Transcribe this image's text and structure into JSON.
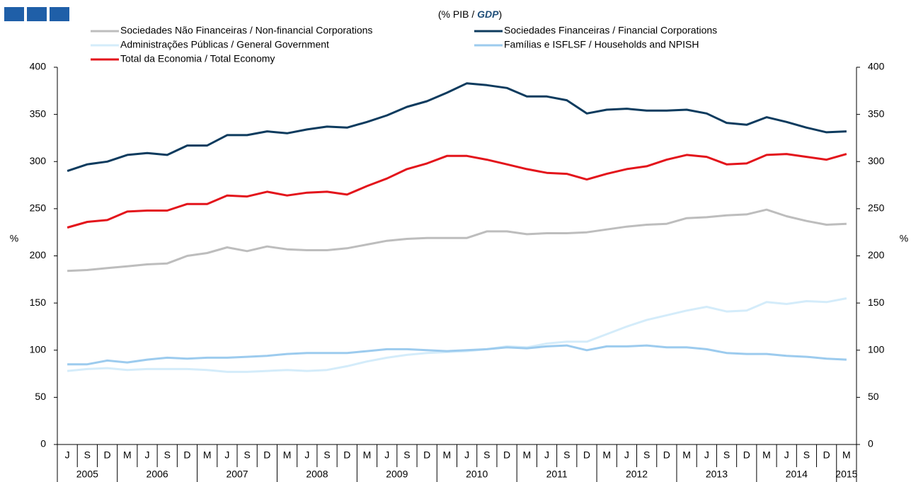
{
  "chart_data": {
    "type": "line",
    "subtitle": [
      "(% PIB / ",
      "GDP",
      ")"
    ],
    "y_label": "%",
    "y2_label": "%",
    "categories": [
      "J",
      "S",
      "D",
      "M",
      "J",
      "S",
      "D",
      "M",
      "J",
      "S",
      "D",
      "M",
      "J",
      "S",
      "D",
      "M",
      "J",
      "S",
      "D",
      "M",
      "J",
      "S",
      "D",
      "M",
      "J",
      "S",
      "D",
      "M",
      "J",
      "S",
      "D",
      "M",
      "J",
      "S",
      "D",
      "M",
      "J",
      "S",
      "D",
      "M"
    ],
    "category_years": [
      "2005",
      "2005",
      "2005",
      "2006",
      "2006",
      "2006",
      "2006",
      "2007",
      "2007",
      "2007",
      "2007",
      "2008",
      "2008",
      "2008",
      "2008",
      "2009",
      "2009",
      "2009",
      "2009",
      "2010",
      "2010",
      "2010",
      "2010",
      "2011",
      "2011",
      "2011",
      "2011",
      "2012",
      "2012",
      "2012",
      "2012",
      "2013",
      "2013",
      "2013",
      "2013",
      "2014",
      "2014",
      "2014",
      "2014",
      "2015"
    ],
    "series": [
      {
        "name": "Sociedades Não Financeiras / Non-financial Corporations",
        "color": "#bdbdbd",
        "values": [
          184,
          185,
          187,
          189,
          191,
          192,
          200,
          203,
          209,
          205,
          210,
          207,
          206,
          206,
          208,
          212,
          216,
          218,
          219,
          219,
          219,
          226,
          226,
          223,
          224,
          224,
          225,
          228,
          231,
          233,
          234,
          240,
          241,
          243,
          244,
          249,
          242,
          237,
          233,
          234
        ]
      },
      {
        "name": "Sociedades Financeiras / Financial Corporations",
        "color": "#0d3b5e",
        "values": [
          290,
          297,
          300,
          307,
          309,
          307,
          317,
          317,
          328,
          328,
          332,
          330,
          334,
          337,
          336,
          342,
          349,
          358,
          364,
          373,
          383,
          381,
          378,
          369,
          369,
          365,
          351,
          355,
          356,
          354,
          354,
          355,
          351,
          341,
          339,
          347,
          342,
          336,
          331,
          332
        ]
      },
      {
        "name": "Administrações Públicas / General Government",
        "color": "#d4ecfa",
        "values": [
          78,
          80,
          81,
          79,
          80,
          80,
          80,
          79,
          77,
          77,
          78,
          79,
          78,
          79,
          83,
          88,
          92,
          95,
          97,
          98,
          99,
          101,
          104,
          103,
          107,
          109,
          109,
          117,
          125,
          132,
          137,
          142,
          146,
          141,
          142,
          151,
          149,
          152,
          151,
          155
        ]
      },
      {
        "name": "Famílias e ISFLSF / Households and NPISH",
        "color": "#9ccbee",
        "values": [
          85,
          85,
          89,
          87,
          90,
          92,
          91,
          92,
          92,
          93,
          94,
          96,
          97,
          97,
          97,
          99,
          101,
          101,
          100,
          99,
          100,
          101,
          103,
          102,
          104,
          105,
          100,
          104,
          104,
          105,
          103,
          103,
          101,
          97,
          96,
          96,
          94,
          93,
          91,
          90
        ]
      },
      {
        "name": "Total da Economia / Total Economy",
        "color": "#e3141b",
        "values": [
          230,
          236,
          238,
          247,
          248,
          248,
          255,
          255,
          264,
          263,
          268,
          264,
          267,
          268,
          265,
          274,
          282,
          292,
          298,
          306,
          306,
          302,
          297,
          292,
          288,
          287,
          281,
          287,
          292,
          295,
          302,
          307,
          305,
          297,
          298,
          307,
          308,
          305,
          302,
          308
        ]
      }
    ],
    "ylim": [
      0,
      400
    ],
    "yticks": [
      0,
      50,
      100,
      150,
      200,
      250,
      300,
      350,
      400
    ],
    "y2lim": [
      0,
      400
    ],
    "y2ticks": [
      0,
      50,
      100,
      150,
      200,
      250,
      300,
      350,
      400
    ],
    "grid": false
  }
}
